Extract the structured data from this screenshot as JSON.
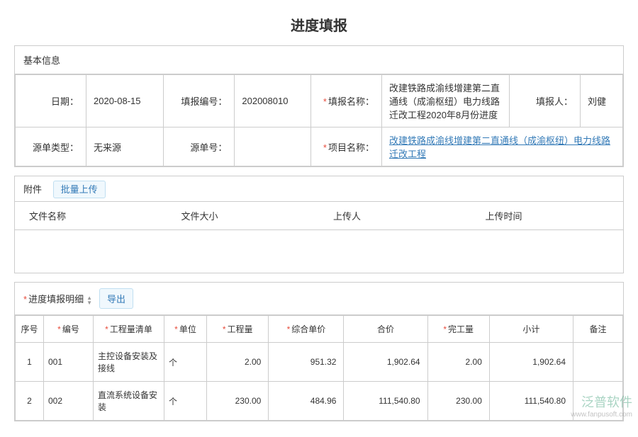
{
  "title": "进度填报",
  "basic": {
    "header": "基本信息",
    "labels": {
      "date": "日期：",
      "reportNo": "填报编号：",
      "reportName": "填报名称：",
      "reporter": "填报人：",
      "sourceType": "源单类型：",
      "sourceNo": "源单号：",
      "projectName": "项目名称："
    },
    "values": {
      "date": "2020-08-15",
      "reportNo": "202008010",
      "reportName": "改建铁路成渝线增建第二直通线（成渝枢纽）电力线路迁改工程2020年8月份进度",
      "reporter": "刘健",
      "sourceType": "无来源",
      "sourceNo": "",
      "projectName": "改建铁路成渝线增建第二直通线（成渝枢纽）电力线路迁改工程"
    }
  },
  "attach": {
    "header": "附件",
    "uploadBtn": "批量上传",
    "cols": {
      "name": "文件名称",
      "size": "文件大小",
      "uploader": "上传人",
      "time": "上传时间"
    }
  },
  "detail": {
    "header": "进度填报明细",
    "exportBtn": "导出",
    "cols": {
      "seq": "序号",
      "code": "编号",
      "item": "工程量清单",
      "unit": "单位",
      "qty": "工程量",
      "price": "综合单价",
      "total": "合价",
      "doneQty": "完工量",
      "subtotal": "小计",
      "remark": "备注"
    },
    "rows": [
      {
        "seq": "1",
        "code": "001",
        "item": "主控设备安装及接线",
        "unit": "个",
        "qty": "2.00",
        "price": "951.32",
        "total": "1,902.64",
        "doneQty": "2.00",
        "subtotal": "1,902.64",
        "remark": ""
      },
      {
        "seq": "2",
        "code": "002",
        "item": "直流系统设备安装",
        "unit": "个",
        "qty": "230.00",
        "price": "484.96",
        "total": "111,540.80",
        "doneQty": "230.00",
        "subtotal": "111,540.80",
        "remark": ""
      }
    ]
  },
  "watermark": {
    "brand": "泛普软件",
    "url": "www.fanpusoft.com"
  }
}
